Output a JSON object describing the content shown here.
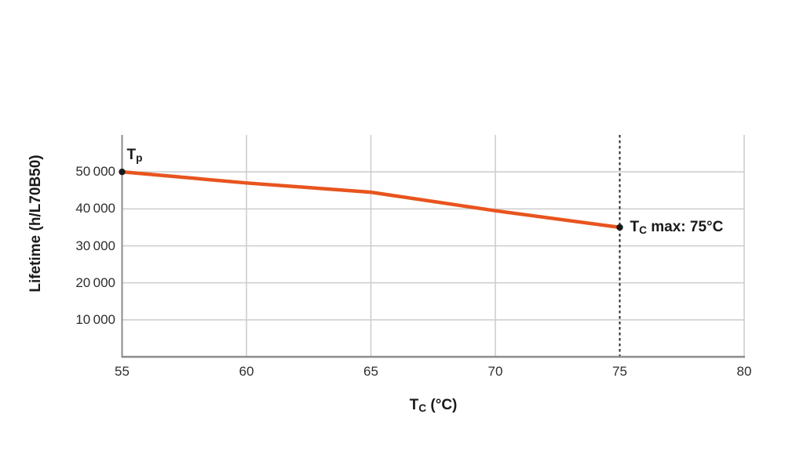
{
  "chart_data": {
    "type": "line",
    "title": "",
    "ylabel": "Lifetime (h/L70B50)",
    "xlabel_parts": {
      "main": "T",
      "sub": "C",
      "rest": " (°C)"
    },
    "x": [
      55,
      60,
      65,
      70,
      75
    ],
    "values": [
      50000,
      47000,
      44500,
      39500,
      35000
    ],
    "xlim": [
      55,
      80
    ],
    "ylim": [
      0,
      60000
    ],
    "x_ticks": [
      {
        "value": 55,
        "label": "55"
      },
      {
        "value": 60,
        "label": "60"
      },
      {
        "value": 65,
        "label": "65"
      },
      {
        "value": 70,
        "label": "70"
      },
      {
        "value": 75,
        "label": "75"
      },
      {
        "value": 80,
        "label": "80"
      }
    ],
    "y_ticks": [
      {
        "value": 10000,
        "label": "10 000"
      },
      {
        "value": 20000,
        "label": "20 000"
      },
      {
        "value": 30000,
        "label": "30 000"
      },
      {
        "value": 40000,
        "label": "40 000"
      },
      {
        "value": 50000,
        "label": "50 000"
      }
    ],
    "grid": true,
    "legend": "none",
    "colors": {
      "line": "#e8541e",
      "grid": "#cccccc",
      "axis": "#8c8c8c",
      "dash": "#2b2b2b",
      "point": "#1a1a1a"
    },
    "annotations": {
      "start_label": {
        "main": "T",
        "sub": "p"
      },
      "max_x": 75,
      "max_label": {
        "main": "T",
        "sub": "C",
        "rest": " max: 75°C"
      }
    }
  }
}
